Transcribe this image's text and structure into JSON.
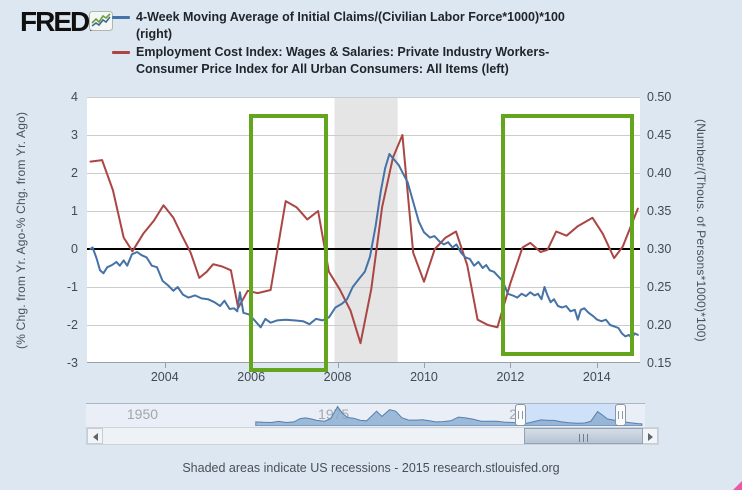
{
  "branding": {
    "logo_text": "FRED."
  },
  "legend": [
    {
      "color": "#4572a7",
      "label": "4-Week Moving Average of Initial Claims/(Civilian Labor Force*1000)*100\n(right)"
    },
    {
      "color": "#aa4643",
      "label": "Employment Cost Index: Wages & Salaries: Private Industry Workers-\nConsumer Price Index for All Urban Consumers: All Items (left)"
    }
  ],
  "footer": {
    "caption": "Shaded areas indicate US recessions - 2015 research.stlouisfed.org"
  },
  "ui": {
    "scrollbar": {
      "thumb_start": 0.78,
      "thumb_end": 1.0
    }
  },
  "chart_data": {
    "type": "line",
    "title": "",
    "grid": true,
    "x_axis": {
      "range": [
        2002.2,
        2015.0
      ],
      "ticks": [
        2004,
        2006,
        2008,
        2010,
        2012,
        2014
      ]
    },
    "left_axis": {
      "label": "(% Chg. from Yr. Ago-% Chg. from Yr. Ago)",
      "range": [
        -3,
        4
      ],
      "ticks": [
        "4",
        "3",
        "2",
        "1",
        "0",
        "-1",
        "-2",
        "-3"
      ],
      "tick_values": [
        4,
        3,
        2,
        1,
        0,
        -1,
        -2,
        -3
      ]
    },
    "right_axis": {
      "label": "(Number/(Thous. of Persons*1000)*100)",
      "range": [
        0.15,
        0.5
      ],
      "ticks": [
        "0.50",
        "0.45",
        "0.40",
        "0.35",
        "0.30",
        "0.25",
        "0.20",
        "0.15"
      ],
      "tick_values": [
        0.5,
        0.45,
        0.4,
        0.35,
        0.3,
        0.25,
        0.2,
        0.15
      ]
    },
    "zero_line_value": 0,
    "recession_bands": [
      {
        "from": 2007.93,
        "to": 2009.39
      }
    ],
    "highlight_boxes": [
      {
        "year_from": 2005.99,
        "year_to": 2007.82,
        "val_top": 3.55,
        "val_bottom": -3.24
      },
      {
        "year_from": 2011.82,
        "year_to": 2014.9,
        "val_top": 3.55,
        "val_bottom": -2.82
      }
    ],
    "series": [
      {
        "name": "4-Week Moving Average of Initial Claims/(Civilian Labor Force*1000)*100",
        "axis": "right",
        "color": "#4572a7",
        "points": [
          [
            2002.28,
            0.3
          ],
          [
            2002.33,
            0.302
          ],
          [
            2002.42,
            0.288
          ],
          [
            2002.5,
            0.272
          ],
          [
            2002.58,
            0.268
          ],
          [
            2002.67,
            0.276
          ],
          [
            2002.78,
            0.279
          ],
          [
            2002.88,
            0.283
          ],
          [
            2002.96,
            0.278
          ],
          [
            2003.05,
            0.285
          ],
          [
            2003.13,
            0.278
          ],
          [
            2003.24,
            0.293
          ],
          [
            2003.36,
            0.296
          ],
          [
            2003.46,
            0.292
          ],
          [
            2003.58,
            0.289
          ],
          [
            2003.7,
            0.278
          ],
          [
            2003.82,
            0.276
          ],
          [
            2003.95,
            0.258
          ],
          [
            2004.08,
            0.252
          ],
          [
            2004.2,
            0.245
          ],
          [
            2004.3,
            0.25
          ],
          [
            2004.42,
            0.24
          ],
          [
            2004.55,
            0.236
          ],
          [
            2004.7,
            0.239
          ],
          [
            2004.85,
            0.235
          ],
          [
            2005.0,
            0.234
          ],
          [
            2005.15,
            0.23
          ],
          [
            2005.28,
            0.225
          ],
          [
            2005.38,
            0.232
          ],
          [
            2005.5,
            0.221
          ],
          [
            2005.6,
            0.222
          ],
          [
            2005.68,
            0.218
          ],
          [
            2005.74,
            0.243
          ],
          [
            2005.82,
            0.216
          ],
          [
            2005.95,
            0.214
          ],
          [
            2006.08,
            0.206
          ],
          [
            2006.22,
            0.197
          ],
          [
            2006.33,
            0.208
          ],
          [
            2006.45,
            0.203
          ],
          [
            2006.6,
            0.206
          ],
          [
            2006.8,
            0.207
          ],
          [
            2007.0,
            0.206
          ],
          [
            2007.2,
            0.205
          ],
          [
            2007.35,
            0.201
          ],
          [
            2007.5,
            0.208
          ],
          [
            2007.65,
            0.206
          ],
          [
            2007.8,
            0.21
          ],
          [
            2007.95,
            0.223
          ],
          [
            2008.1,
            0.228
          ],
          [
            2008.22,
            0.234
          ],
          [
            2008.35,
            0.25
          ],
          [
            2008.5,
            0.261
          ],
          [
            2008.63,
            0.27
          ],
          [
            2008.75,
            0.29
          ],
          [
            2008.88,
            0.33
          ],
          [
            2009.0,
            0.376
          ],
          [
            2009.1,
            0.406
          ],
          [
            2009.2,
            0.425
          ],
          [
            2009.32,
            0.417
          ],
          [
            2009.42,
            0.41
          ],
          [
            2009.52,
            0.399
          ],
          [
            2009.62,
            0.388
          ],
          [
            2009.75,
            0.362
          ],
          [
            2009.88,
            0.336
          ],
          [
            2010.0,
            0.322
          ],
          [
            2010.14,
            0.315
          ],
          [
            2010.24,
            0.317
          ],
          [
            2010.36,
            0.31
          ],
          [
            2010.46,
            0.306
          ],
          [
            2010.56,
            0.309
          ],
          [
            2010.66,
            0.302
          ],
          [
            2010.75,
            0.306
          ],
          [
            2010.86,
            0.295
          ],
          [
            2010.96,
            0.289
          ],
          [
            2011.06,
            0.287
          ],
          [
            2011.16,
            0.278
          ],
          [
            2011.26,
            0.283
          ],
          [
            2011.36,
            0.275
          ],
          [
            2011.44,
            0.279
          ],
          [
            2011.52,
            0.272
          ],
          [
            2011.62,
            0.27
          ],
          [
            2011.72,
            0.264
          ],
          [
            2011.82,
            0.258
          ],
          [
            2011.94,
            0.241
          ],
          [
            2012.05,
            0.239
          ],
          [
            2012.16,
            0.236
          ],
          [
            2012.26,
            0.241
          ],
          [
            2012.36,
            0.238
          ],
          [
            2012.46,
            0.243
          ],
          [
            2012.56,
            0.239
          ],
          [
            2012.64,
            0.241
          ],
          [
            2012.72,
            0.234
          ],
          [
            2012.79,
            0.25
          ],
          [
            2012.86,
            0.239
          ],
          [
            2012.93,
            0.23
          ],
          [
            2013.01,
            0.234
          ],
          [
            2013.1,
            0.225
          ],
          [
            2013.2,
            0.223
          ],
          [
            2013.29,
            0.225
          ],
          [
            2013.39,
            0.218
          ],
          [
            2013.49,
            0.22
          ],
          [
            2013.56,
            0.207
          ],
          [
            2013.63,
            0.22
          ],
          [
            2013.71,
            0.222
          ],
          [
            2013.81,
            0.216
          ],
          [
            2013.91,
            0.212
          ],
          [
            2014.01,
            0.207
          ],
          [
            2014.11,
            0.205
          ],
          [
            2014.21,
            0.207
          ],
          [
            2014.31,
            0.2
          ],
          [
            2014.41,
            0.198
          ],
          [
            2014.5,
            0.196
          ],
          [
            2014.58,
            0.189
          ],
          [
            2014.66,
            0.185
          ],
          [
            2014.74,
            0.187
          ],
          [
            2014.81,
            0.183
          ],
          [
            2014.88,
            0.189
          ],
          [
            2014.95,
            0.187
          ]
        ]
      },
      {
        "name": "Employment Cost Index: Wages & Salaries: Private Industry Workers - CPI All Urban Consumers: All Items",
        "axis": "left",
        "color": "#aa4643",
        "points": [
          [
            2002.28,
            2.3
          ],
          [
            2002.55,
            2.34
          ],
          [
            2002.8,
            1.55
          ],
          [
            2003.05,
            0.3
          ],
          [
            2003.25,
            -0.06
          ],
          [
            2003.5,
            0.4
          ],
          [
            2003.75,
            0.75
          ],
          [
            2003.97,
            1.15
          ],
          [
            2004.2,
            0.82
          ],
          [
            2004.4,
            0.35
          ],
          [
            2004.6,
            -0.1
          ],
          [
            2004.8,
            -0.76
          ],
          [
            2004.97,
            -0.6
          ],
          [
            2005.12,
            -0.4
          ],
          [
            2005.33,
            -0.46
          ],
          [
            2005.53,
            -0.56
          ],
          [
            2005.7,
            -1.55
          ],
          [
            2005.92,
            -1.1
          ],
          [
            2006.15,
            -1.16
          ],
          [
            2006.45,
            -1.08
          ],
          [
            2006.8,
            1.26
          ],
          [
            2007.05,
            1.1
          ],
          [
            2007.3,
            0.78
          ],
          [
            2007.55,
            1.0
          ],
          [
            2007.8,
            -0.6
          ],
          [
            2008.05,
            -1.06
          ],
          [
            2008.3,
            -1.62
          ],
          [
            2008.53,
            -2.48
          ],
          [
            2008.78,
            -1.05
          ],
          [
            2009.03,
            1.1
          ],
          [
            2009.28,
            2.4
          ],
          [
            2009.5,
            3.0
          ],
          [
            2009.75,
            -0.1
          ],
          [
            2010.0,
            -0.86
          ],
          [
            2010.25,
            0.0
          ],
          [
            2010.5,
            0.3
          ],
          [
            2010.74,
            0.46
          ],
          [
            2011.0,
            -0.42
          ],
          [
            2011.24,
            -1.86
          ],
          [
            2011.48,
            -2.0
          ],
          [
            2011.7,
            -2.06
          ],
          [
            2012.0,
            -0.9
          ],
          [
            2012.28,
            0.04
          ],
          [
            2012.46,
            0.16
          ],
          [
            2012.7,
            -0.08
          ],
          [
            2012.86,
            -0.02
          ],
          [
            2013.06,
            0.46
          ],
          [
            2013.3,
            0.35
          ],
          [
            2013.56,
            0.6
          ],
          [
            2013.9,
            0.82
          ],
          [
            2014.14,
            0.4
          ],
          [
            2014.4,
            -0.24
          ],
          [
            2014.6,
            0.06
          ],
          [
            2014.95,
            1.06
          ]
        ]
      }
    ],
    "overview": {
      "year_labels": [
        1950,
        1975,
        2000
      ],
      "year_range": [
        1942.3,
        2015.4
      ],
      "selection_years": [
        1999.1,
        2012.2
      ],
      "points": [
        [
          1964.5,
          0.22
        ],
        [
          1965.5,
          0.2
        ],
        [
          1966.5,
          0.19
        ],
        [
          1967.5,
          0.25
        ],
        [
          1968.5,
          0.19
        ],
        [
          1969.5,
          0.22
        ],
        [
          1970.3,
          0.4
        ],
        [
          1971.0,
          0.44
        ],
        [
          1971.8,
          0.38
        ],
        [
          1972.5,
          0.3
        ],
        [
          1973.5,
          0.26
        ],
        [
          1974.3,
          0.4
        ],
        [
          1975.2,
          1.05
        ],
        [
          1975.8,
          0.7
        ],
        [
          1976.5,
          0.46
        ],
        [
          1977.3,
          0.42
        ],
        [
          1978.2,
          0.3
        ],
        [
          1979.0,
          0.28
        ],
        [
          1980.3,
          0.8
        ],
        [
          1981.0,
          0.52
        ],
        [
          1982.0,
          0.88
        ],
        [
          1982.8,
          0.8
        ],
        [
          1983.6,
          0.45
        ],
        [
          1984.5,
          0.32
        ],
        [
          1985.5,
          0.32
        ],
        [
          1986.3,
          0.34
        ],
        [
          1987.2,
          0.28
        ],
        [
          1988.0,
          0.22
        ],
        [
          1989.0,
          0.24
        ],
        [
          1990.0,
          0.28
        ],
        [
          1991.0,
          0.48
        ],
        [
          1991.8,
          0.45
        ],
        [
          1992.8,
          0.38
        ],
        [
          1994.0,
          0.26
        ],
        [
          1995.0,
          0.26
        ],
        [
          1996.0,
          0.26
        ],
        [
          1997.0,
          0.21
        ],
        [
          1998.0,
          0.19
        ],
        [
          1999.0,
          0.17
        ],
        [
          2000.0,
          0.15
        ],
        [
          2001.0,
          0.25
        ],
        [
          2001.8,
          0.33
        ],
        [
          2002.8,
          0.3
        ],
        [
          2003.5,
          0.3
        ],
        [
          2004.5,
          0.22
        ],
        [
          2005.5,
          0.18
        ],
        [
          2006.5,
          0.15
        ],
        [
          2007.5,
          0.16
        ],
        [
          2008.3,
          0.25
        ],
        [
          2009.2,
          0.78
        ],
        [
          2009.8,
          0.6
        ],
        [
          2010.5,
          0.38
        ],
        [
          2011.5,
          0.3
        ],
        [
          2012.5,
          0.24
        ],
        [
          2013.5,
          0.18
        ],
        [
          2014.5,
          0.13
        ],
        [
          2015.0,
          0.12
        ]
      ]
    }
  }
}
